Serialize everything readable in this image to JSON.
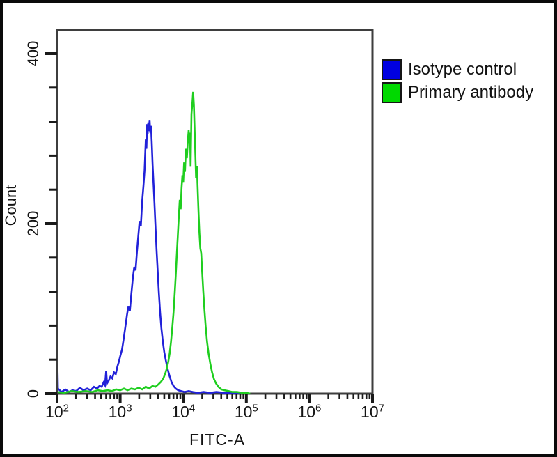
{
  "colors": {
    "outer_border": "#0a0a0a",
    "plot_frame": "#3e3e3e",
    "tick": "#1a1a1a",
    "text": "#141414",
    "background": "#ffffff",
    "isotype_curve": "#2121d9",
    "primary_curve": "#1fce1f",
    "legend_blue": "#0000e0",
    "legend_green": "#00d900"
  },
  "chart_data": {
    "type": "line",
    "subtype": "flow-cytometry-overlay-histogram",
    "title": "",
    "xlabel": "FITC-A",
    "ylabel": "Count",
    "x_scale": "log10",
    "x_range": [
      100,
      10000000
    ],
    "y_range": [
      0,
      427
    ],
    "grid": false,
    "x_ticks": [
      {
        "base": "10",
        "exp": "2",
        "value": 100
      },
      {
        "base": "10",
        "exp": "3",
        "value": 1000
      },
      {
        "base": "10",
        "exp": "4",
        "value": 10000
      },
      {
        "base": "10",
        "exp": "5",
        "value": 100000
      },
      {
        "base": "10",
        "exp": "6",
        "value": 1000000
      },
      {
        "base": "10",
        "exp": "7",
        "value": 10000000
      }
    ],
    "x_minor_pattern": "log-decades",
    "y_ticks": [
      {
        "label": "0",
        "value": 0
      },
      {
        "label": "200",
        "value": 200
      },
      {
        "label": "400",
        "value": 400
      }
    ],
    "y_minor_interval": 40,
    "legend_position": "outside-top-right",
    "legend": [
      {
        "label": "Isotype control",
        "color": "#0000e0"
      },
      {
        "label": "Primary antibody",
        "color": "#00d900"
      }
    ],
    "series": [
      {
        "name": "Isotype control",
        "slug": "isotype-control",
        "color": "#2121d9",
        "points": [
          [
            100,
            0
          ],
          [
            100,
            55
          ],
          [
            103,
            6
          ],
          [
            118,
            2
          ],
          [
            135,
            5
          ],
          [
            155,
            2
          ],
          [
            175,
            4
          ],
          [
            200,
            3
          ],
          [
            230,
            7
          ],
          [
            262,
            4
          ],
          [
            300,
            6
          ],
          [
            340,
            4
          ],
          [
            385,
            8
          ],
          [
            430,
            6
          ],
          [
            470,
            9
          ],
          [
            510,
            8
          ],
          [
            545,
            13
          ],
          [
            575,
            10
          ],
          [
            600,
            27
          ],
          [
            618,
            12
          ],
          [
            655,
            15
          ],
          [
            700,
            20
          ],
          [
            748,
            18
          ],
          [
            800,
            25
          ],
          [
            852,
            23
          ],
          [
            905,
            32
          ],
          [
            958,
            38
          ],
          [
            1010,
            45
          ],
          [
            1070,
            52
          ],
          [
            1130,
            63
          ],
          [
            1200,
            77
          ],
          [
            1280,
            92
          ],
          [
            1350,
            103
          ],
          [
            1425,
            97
          ],
          [
            1500,
            117
          ],
          [
            1585,
            135
          ],
          [
            1670,
            149
          ],
          [
            1755,
            145
          ],
          [
            1845,
            167
          ],
          [
            1935,
            185
          ],
          [
            2030,
            203
          ],
          [
            2125,
            197
          ],
          [
            2225,
            225
          ],
          [
            2330,
            243
          ],
          [
            2435,
            262
          ],
          [
            2545,
            299
          ],
          [
            2605,
            288
          ],
          [
            2665,
            317
          ],
          [
            2725,
            305
          ],
          [
            2790,
            319
          ],
          [
            2858,
            309
          ],
          [
            2928,
            322
          ],
          [
            3000,
            307
          ],
          [
            3080,
            315
          ],
          [
            3170,
            295
          ],
          [
            3270,
            269
          ],
          [
            3380,
            247
          ],
          [
            3500,
            223
          ],
          [
            3640,
            195
          ],
          [
            3790,
            167
          ],
          [
            3950,
            141
          ],
          [
            4120,
            117
          ],
          [
            4300,
            95
          ],
          [
            4500,
            77
          ],
          [
            4750,
            61
          ],
          [
            5000,
            49
          ],
          [
            5300,
            39
          ],
          [
            5650,
            29
          ],
          [
            6050,
            21
          ],
          [
            6500,
            14
          ],
          [
            7000,
            9
          ],
          [
            7600,
            6
          ],
          [
            8300,
            4
          ],
          [
            9200,
            3
          ],
          [
            10500,
            2
          ],
          [
            12200,
            3
          ],
          [
            14200,
            2
          ],
          [
            17000,
            1
          ],
          [
            21000,
            2
          ],
          [
            26500,
            1
          ],
          [
            33500,
            2
          ],
          [
            45000,
            1
          ],
          [
            62000,
            1
          ],
          [
            83000,
            1
          ],
          [
            100000,
            0
          ]
        ]
      },
      {
        "name": "Primary antibody",
        "slug": "primary-antibody",
        "color": "#1fce1f",
        "points": [
          [
            100,
            2
          ],
          [
            130,
            1
          ],
          [
            170,
            3
          ],
          [
            220,
            2
          ],
          [
            285,
            3
          ],
          [
            360,
            2
          ],
          [
            440,
            4
          ],
          [
            530,
            3
          ],
          [
            630,
            4
          ],
          [
            740,
            3
          ],
          [
            860,
            5
          ],
          [
            1000,
            4
          ],
          [
            1150,
            6
          ],
          [
            1310,
            4
          ],
          [
            1500,
            6
          ],
          [
            1720,
            5
          ],
          [
            1960,
            7
          ],
          [
            2230,
            5
          ],
          [
            2540,
            8
          ],
          [
            2880,
            6
          ],
          [
            3250,
            9
          ],
          [
            3640,
            8
          ],
          [
            4050,
            11
          ],
          [
            4450,
            14
          ],
          [
            4850,
            18
          ],
          [
            5200,
            24
          ],
          [
            5500,
            30
          ],
          [
            5800,
            38
          ],
          [
            6100,
            48
          ],
          [
            6400,
            61
          ],
          [
            6700,
            77
          ],
          [
            7000,
            95
          ],
          [
            7300,
            116
          ],
          [
            7600,
            139
          ],
          [
            7900,
            163
          ],
          [
            8200,
            186
          ],
          [
            8500,
            208
          ],
          [
            8800,
            228
          ],
          [
            9100,
            217
          ],
          [
            9400,
            242
          ],
          [
            9700,
            257
          ],
          [
            10000,
            249
          ],
          [
            10300,
            272
          ],
          [
            10650,
            261
          ],
          [
            11000,
            288
          ],
          [
            11400,
            277
          ],
          [
            11800,
            297
          ],
          [
            12200,
            310
          ],
          [
            12500,
            295
          ],
          [
            12800,
            307
          ],
          [
            13100,
            267
          ],
          [
            13500,
            329
          ],
          [
            13950,
            342
          ],
          [
            14350,
            355
          ],
          [
            14750,
            339
          ],
          [
            15150,
            311
          ],
          [
            15550,
            281
          ],
          [
            15950,
            254
          ],
          [
            16450,
            268
          ],
          [
            16950,
            239
          ],
          [
            17450,
            214
          ],
          [
            18050,
            189
          ],
          [
            18650,
            171
          ],
          [
            19250,
            165
          ],
          [
            19950,
            143
          ],
          [
            20750,
            121
          ],
          [
            21650,
            99
          ],
          [
            22650,
            79
          ],
          [
            23850,
            61
          ],
          [
            25250,
            47
          ],
          [
            26850,
            35
          ],
          [
            28650,
            25
          ],
          [
            30750,
            17
          ],
          [
            33100,
            12
          ],
          [
            36100,
            8
          ],
          [
            40100,
            5
          ],
          [
            45100,
            4
          ],
          [
            52000,
            3
          ],
          [
            60000,
            2
          ],
          [
            71000,
            2
          ],
          [
            85000,
            1
          ],
          [
            100000,
            1
          ],
          [
            115000,
            0
          ]
        ]
      }
    ]
  }
}
